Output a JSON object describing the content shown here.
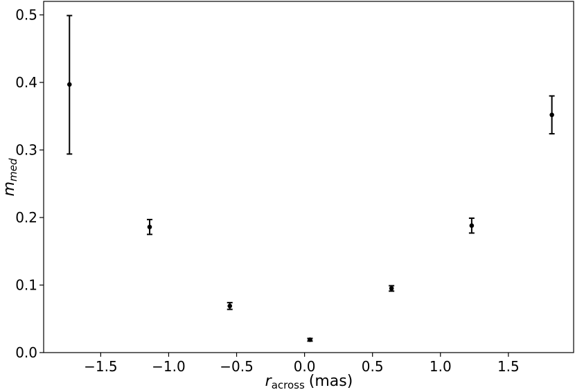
{
  "chart_data": {
    "type": "scatter",
    "xlabel_main": "r",
    "xlabel_sub": "across",
    "xlabel_unit": "(mas)",
    "ylabel_main": "m",
    "ylabel_sub": "med",
    "title": "",
    "xlim": [
      -1.92,
      1.98
    ],
    "ylim": [
      0.0,
      0.52
    ],
    "x_ticks": [
      -1.5,
      -1.0,
      -0.5,
      0.0,
      0.5,
      1.0,
      1.5
    ],
    "x_tick_labels": [
      "−1.5",
      "−1.0",
      "−0.5",
      "0.0",
      "0.5",
      "1.0",
      "1.5"
    ],
    "y_ticks": [
      0.0,
      0.1,
      0.2,
      0.3,
      0.4,
      0.5
    ],
    "y_tick_labels": [
      "0.0",
      "0.1",
      "0.2",
      "0.3",
      "0.4",
      "0.5"
    ],
    "grid": false,
    "marker_color": "#000000",
    "points": [
      {
        "x": -1.73,
        "y": 0.397,
        "yerr_low": 0.294,
        "yerr_high": 0.499
      },
      {
        "x": -1.14,
        "y": 0.186,
        "yerr_low": 0.175,
        "yerr_high": 0.197
      },
      {
        "x": -0.55,
        "y": 0.069,
        "yerr_low": 0.064,
        "yerr_high": 0.074
      },
      {
        "x": 0.04,
        "y": 0.019,
        "yerr_low": 0.017,
        "yerr_high": 0.021
      },
      {
        "x": 0.64,
        "y": 0.095,
        "yerr_low": 0.091,
        "yerr_high": 0.099
      },
      {
        "x": 1.23,
        "y": 0.188,
        "yerr_low": 0.177,
        "yerr_high": 0.199
      },
      {
        "x": 1.82,
        "y": 0.352,
        "yerr_low": 0.324,
        "yerr_high": 0.38
      }
    ]
  }
}
